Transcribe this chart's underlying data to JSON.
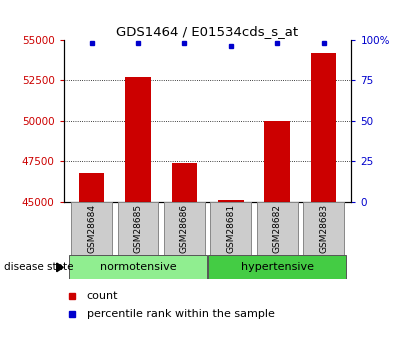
{
  "title": "GDS1464 / E01534cds_s_at",
  "samples": [
    "GSM28684",
    "GSM28685",
    "GSM28686",
    "GSM28681",
    "GSM28682",
    "GSM28683"
  ],
  "counts": [
    46800,
    52700,
    47400,
    45100,
    50000,
    54200
  ],
  "percentile_ranks": [
    98,
    98,
    98,
    96,
    98,
    98
  ],
  "ylim_left": [
    45000,
    55000
  ],
  "ylim_right": [
    0,
    100
  ],
  "yticks_left": [
    45000,
    47500,
    50000,
    52500,
    55000
  ],
  "yticks_right": [
    0,
    25,
    50,
    75,
    100
  ],
  "ytick_labels_left": [
    "45000",
    "47500",
    "50000",
    "52500",
    "55000"
  ],
  "ytick_labels_right": [
    "0",
    "25",
    "50",
    "75",
    "100%"
  ],
  "groups": [
    {
      "label": "normotensive",
      "indices": [
        0,
        1,
        2
      ],
      "color": "#90ee90"
    },
    {
      "label": "hypertensive",
      "indices": [
        3,
        4,
        5
      ],
      "color": "#44cc44"
    }
  ],
  "group_label": "disease state",
  "bar_color": "#cc0000",
  "marker_color": "#0000cc",
  "bar_width": 0.55,
  "grid_color": "#000000",
  "background_color": "#ffffff",
  "ax_bg_color": "#ffffff",
  "sample_box_color": "#cccccc",
  "legend_count_label": "count",
  "legend_percentile_label": "percentile rank within the sample"
}
